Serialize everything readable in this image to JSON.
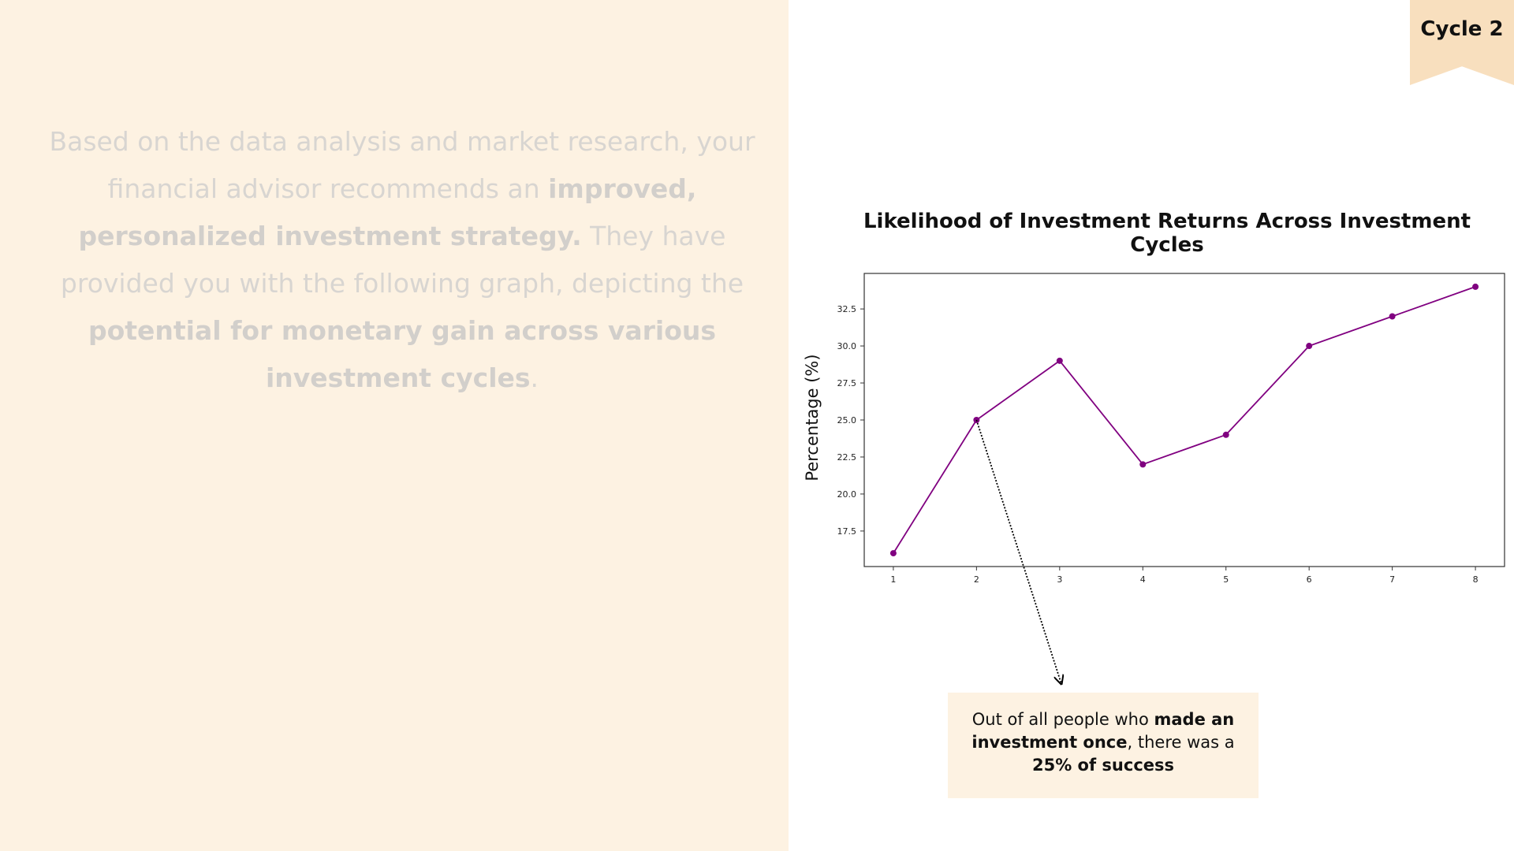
{
  "intro": {
    "part1": "Based on the data analysis and market research, your financial advisor recommends an ",
    "bold1": "improved, personalized investment strategy.",
    "part2": " They have provided you with the following graph, depicting the ",
    "bold2": "potential for monetary gain across various investment cycles",
    "part3": "."
  },
  "badge": {
    "label": "Cycle 2"
  },
  "callout": {
    "part1": "Out of all people who ",
    "bold1": "made an investment once",
    "part2": ", there was a ",
    "bold2": "25% of success"
  },
  "colors": {
    "left_panel": "#fdf2e2",
    "badge": "#f8dfbe",
    "series": "#800080"
  },
  "chart_data": {
    "type": "line",
    "title": "Likelihood of Investment Returns Across Investment Cycles",
    "xlabel": "",
    "ylabel": "Percentage (%)",
    "x": [
      1,
      2,
      3,
      4,
      5,
      6,
      7,
      8
    ],
    "series": [
      {
        "values": [
          16,
          25,
          29,
          22,
          24,
          30,
          32,
          34
        ],
        "color": "#800080"
      }
    ],
    "xticks": [
      "1",
      "2",
      "3",
      "4",
      "5",
      "6",
      "7",
      "8"
    ],
    "yticks": [
      "17.5",
      "20.0",
      "22.5",
      "25.0",
      "27.5",
      "30.0",
      "32.5"
    ],
    "xlim": [
      0.65,
      8.35
    ],
    "ylim": [
      15.1,
      34.9
    ],
    "grid": false,
    "annotation": {
      "x": 2,
      "y": 25
    }
  }
}
